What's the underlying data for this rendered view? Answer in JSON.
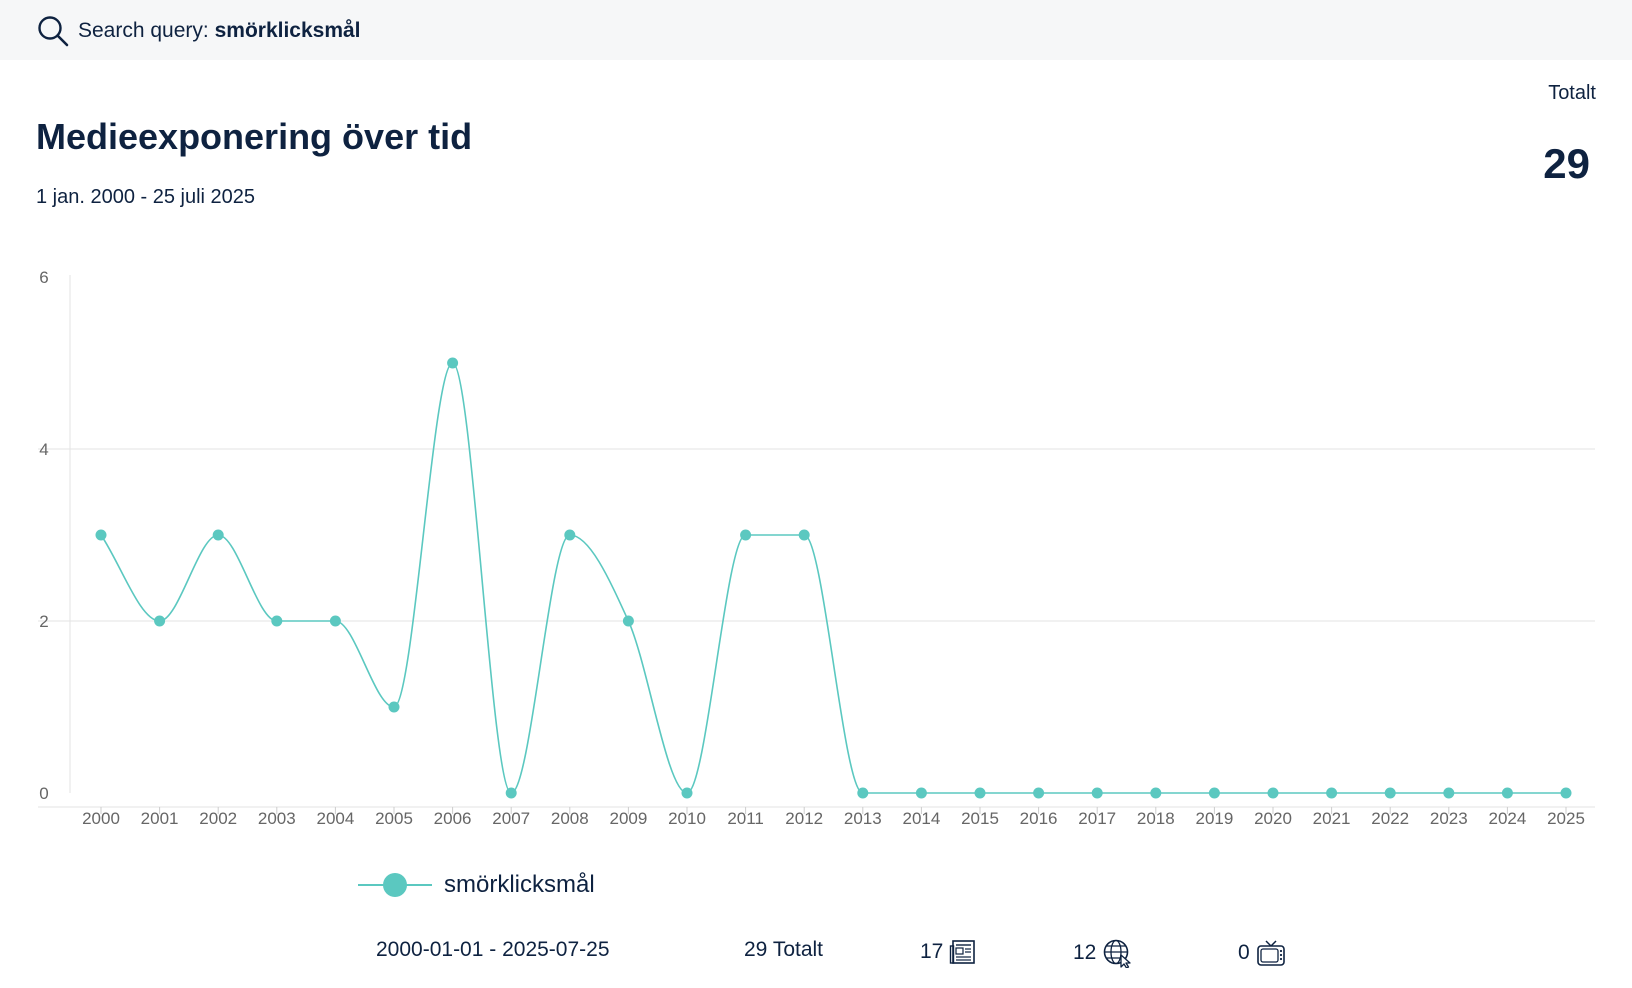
{
  "search": {
    "label": "Search query:",
    "query": "smörklicksmål",
    "icon": "search-icon"
  },
  "header": {
    "title": "Medieexponering över tid",
    "date_range": "1 jan. 2000 - 25 juli 2025",
    "total_label": "Totalt",
    "total_value": "29"
  },
  "colors": {
    "series": "#5bc8c0",
    "text": "#0e2240",
    "axis_text": "#666666",
    "grid": "#e3e3e3"
  },
  "chart_data": {
    "type": "line",
    "title": "Medieexponering över tid",
    "xlabel": "",
    "ylabel": "",
    "x": [
      "2000",
      "2001",
      "2002",
      "2003",
      "2004",
      "2005",
      "2006",
      "2007",
      "2008",
      "2009",
      "2010",
      "2011",
      "2012",
      "2013",
      "2014",
      "2015",
      "2016",
      "2017",
      "2018",
      "2019",
      "2020",
      "2021",
      "2022",
      "2023",
      "2024",
      "2025"
    ],
    "series": [
      {
        "name": "smörklicksmål",
        "values": [
          3,
          2,
          3,
          2,
          2,
          1,
          5,
          0,
          3,
          2,
          0,
          3,
          3,
          0,
          0,
          0,
          0,
          0,
          0,
          0,
          0,
          0,
          0,
          0,
          0,
          0
        ]
      }
    ],
    "ylim": [
      0,
      6
    ],
    "yticks": [
      "0",
      "2",
      "4",
      "6"
    ],
    "grid": true,
    "legend": "bottom",
    "smooth": true
  },
  "footer": {
    "range": "2000-01-01 - 2025-07-25",
    "total": "29 Totalt",
    "print_count": "17",
    "web_count": "12",
    "tv_count": "0",
    "print_icon": "newspaper-icon",
    "web_icon": "globe-icon",
    "tv_icon": "tv-icon"
  }
}
